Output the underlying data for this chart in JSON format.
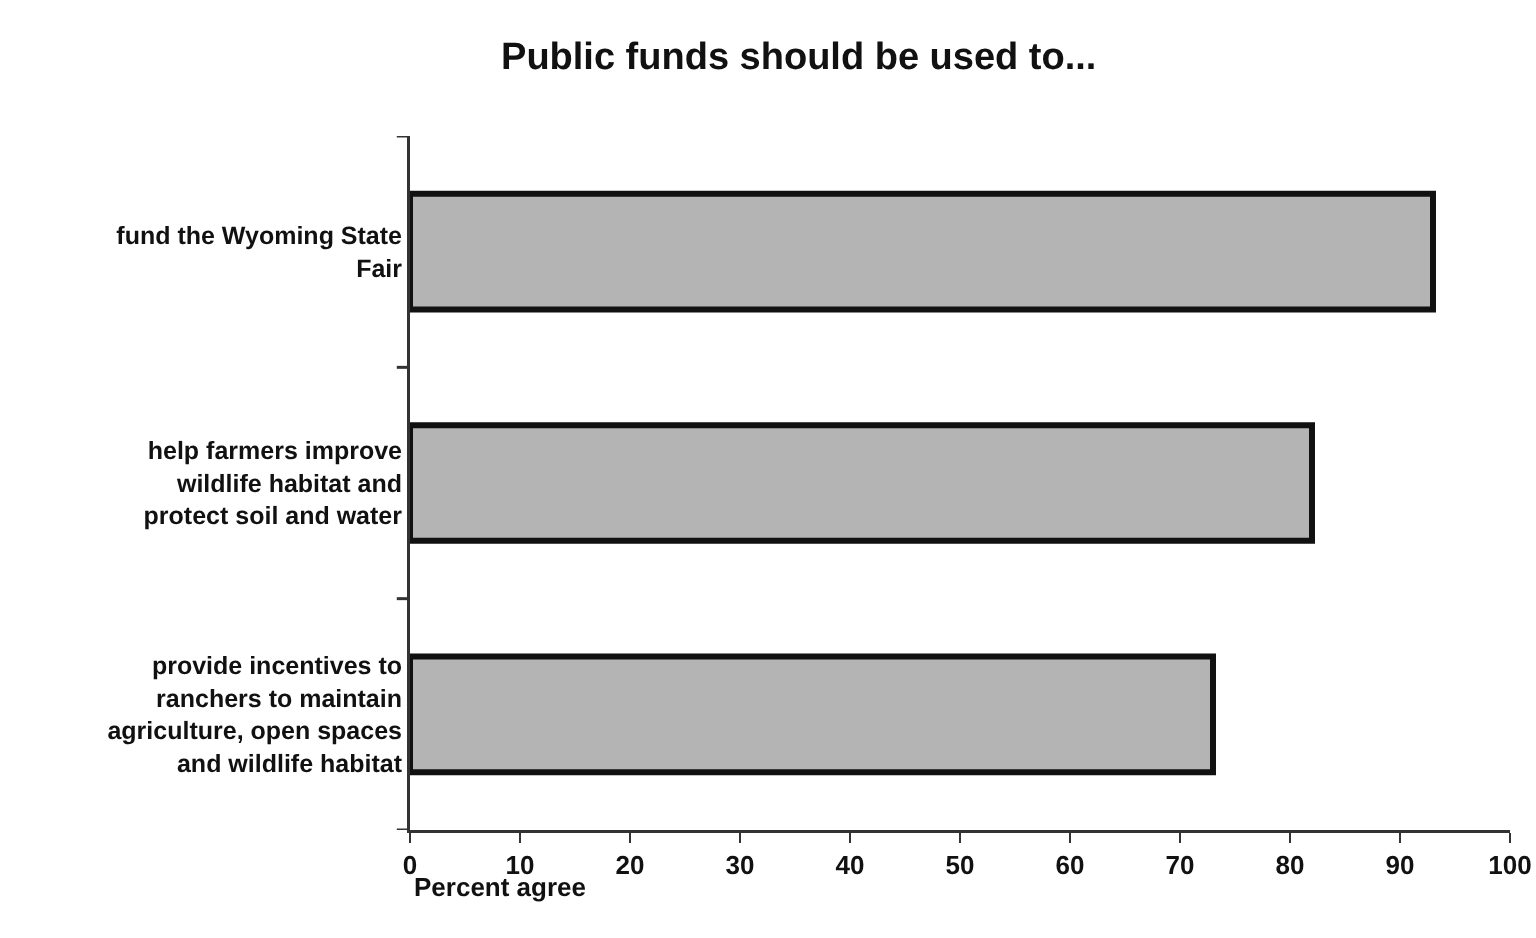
{
  "chart_data": {
    "type": "bar",
    "orientation": "horizontal",
    "title": "Public funds should be used to...",
    "xlabel": "Percent agree",
    "categories": [
      "fund the Wyoming State Fair",
      "help farmers improve wildlife habitat and protect soil and water",
      "provide incentives to ranchers to maintain agriculture, open spaces and wildlife habitat"
    ],
    "values": [
      93,
      82,
      73
    ],
    "color": "#b4b4b4",
    "xlim": [
      0,
      100
    ],
    "xticks": [
      0,
      10,
      20,
      30,
      40,
      50,
      60,
      70,
      80,
      90,
      100
    ],
    "grid": false
  }
}
